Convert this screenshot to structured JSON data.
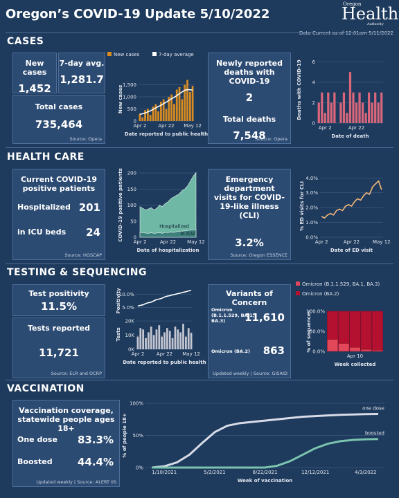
{
  "header": {
    "title": "Oregon’s COVID-19 Update 5/10/2022",
    "logo_top": "Oregon",
    "logo_main": "Health",
    "logo_bottom": "Authority",
    "data_current": "Data Current as of 12:01am 5/11/2022"
  },
  "cases": {
    "title": "CASES",
    "new_cases_label": "New cases",
    "new_cases": "1,452",
    "avg_label": "7-day avg.",
    "avg": "1,281.7",
    "total_label": "Total cases",
    "total": "735,464",
    "source": "Source: Opera",
    "deaths_label": "Newly reported deaths with COVID-19",
    "deaths": "2",
    "total_deaths_label": "Total deaths",
    "total_deaths": "7,548",
    "deaths_source": "Source: Opera"
  },
  "health_care": {
    "title": "HEALTH CARE",
    "patients_label": "Current COVID-19 positive patients",
    "hospitalized_label": "Hospitalized",
    "hospitalized": "201",
    "icu_label": "in ICU beds",
    "icu": "24",
    "source": "Source: HOSCAP",
    "ed_label": "Emergency department visits for COVID-19-like illness (CLI)",
    "ed": "3.2%",
    "ed_source": "Source: Oregon ESSENCE"
  },
  "testing": {
    "title": "TESTING & SEQUENCING",
    "positivity_label": "Test positivity",
    "positivity": "11.5%",
    "tests_label": "Tests reported",
    "tests": "11,721",
    "source": "Source: ELR and OCRP",
    "variants_label": "Variants of Concern",
    "ba1": "11,610",
    "ba2": "863",
    "variants_source": "Updated weekly | Source: GISAID"
  },
  "vaccination": {
    "title": "VACCINATION",
    "coverage_label": "Vaccination coverage, statewide people ages 18+",
    "one_dose_label": "One dose",
    "one_dose": "83.3%",
    "boosted_label": "Boosted",
    "boosted": "44.4%",
    "source": "Updated weekly | Source: ALERT IIS"
  },
  "chart_data": [
    {
      "type": "bar",
      "ylabel": "New cases",
      "xlabel": "Date reported to public health",
      "legend": "top",
      "categories": [
        "Apr 2",
        null,
        null,
        null,
        null,
        null,
        null,
        null,
        null,
        null,
        "Apr 22",
        null,
        null,
        null,
        null,
        null,
        null,
        null,
        null,
        null,
        "May 12"
      ],
      "series": [
        {
          "name": "New cases",
          "mark": "bar",
          "color": "#d98c1f",
          "values": [
            300,
            150,
            450,
            500,
            250,
            600,
            700,
            400,
            800,
            900,
            500,
            1000,
            1100,
            700,
            1300,
            1400,
            900,
            1500,
            1700,
            1200,
            1452
          ]
        },
        {
          "name": "7-day average",
          "mark": "line",
          "color": "#ffffff",
          "values": [
            280,
            300,
            330,
            380,
            420,
            480,
            540,
            600,
            650,
            720,
            780,
            850,
            920,
            980,
            1050,
            1130,
            1200,
            1270,
            1300,
            1290,
            1281.7
          ]
        }
      ],
      "ylim": [
        0,
        1800
      ],
      "yticks": [
        0,
        500,
        {
          "value": 1000,
          "label": "1,000"
        },
        {
          "value": 1500,
          "label": "1,500"
        }
      ]
    },
    {
      "type": "bar",
      "ylabel": "Deaths with COVID-19",
      "xlabel": "Date of death",
      "categories": [
        null,
        null,
        "Apr 2",
        null,
        null,
        null,
        null,
        null,
        null,
        null,
        null,
        null,
        "Apr 22",
        null,
        null,
        null,
        null,
        null,
        null,
        null,
        null
      ],
      "series": [
        {
          "name": "Deaths",
          "color": "#d9677c",
          "values": [
            2,
            3,
            1,
            3,
            2,
            3,
            0,
            2,
            3,
            1,
            5,
            3,
            2,
            3,
            2,
            1,
            3,
            2,
            3,
            2,
            3
          ]
        }
      ],
      "ylim": [
        0,
        6.5
      ],
      "yticks": [
        0,
        2,
        4,
        6
      ]
    },
    {
      "type": "area",
      "ylabel": "COVID-19 positive patients",
      "xlabel": "Date of hospitalization",
      "legend": "inline",
      "categories": [
        "Apr 2",
        null,
        null,
        null,
        null,
        null,
        null,
        null,
        null,
        null,
        "Apr 22",
        null,
        null,
        null,
        null,
        null,
        null,
        null,
        null,
        null,
        "May 12"
      ],
      "series": [
        {
          "name": "Hospitalized",
          "color": "#6fb8a6",
          "values": [
            95,
            90,
            85,
            88,
            92,
            85,
            90,
            100,
            95,
            105,
            110,
            120,
            125,
            130,
            135,
            145,
            150,
            160,
            175,
            190,
            201
          ]
        },
        {
          "name": "in ICU",
          "color": "#3d7f7a",
          "values": [
            15,
            14,
            13,
            12,
            14,
            12,
            13,
            14,
            12,
            15,
            14,
            16,
            15,
            17,
            18,
            19,
            20,
            21,
            22,
            23,
            24
          ]
        }
      ],
      "ylim": [
        0,
        200
      ],
      "yticks": [
        0,
        50,
        100,
        150,
        200
      ]
    },
    {
      "type": "line",
      "ylabel": "% ED visits for CLI",
      "xlabel": "Date of ED visit",
      "categories": [
        "Apr 2",
        null,
        null,
        null,
        null,
        null,
        null,
        null,
        null,
        null,
        "Apr 22",
        null,
        null,
        null,
        null,
        null,
        null,
        null,
        null,
        null,
        "May 12"
      ],
      "series": [
        {
          "name": "CLI",
          "color": "#f5b97a",
          "values": [
            1.4,
            1.3,
            1.5,
            1.6,
            1.5,
            1.8,
            1.9,
            1.8,
            2.1,
            2.2,
            2.1,
            2.4,
            2.6,
            2.5,
            2.8,
            3.0,
            2.9,
            3.4,
            3.6,
            3.8,
            3.2
          ]
        }
      ],
      "ylim": [
        0,
        4.2
      ],
      "yticks": [
        {
          "value": 0,
          "label": "0.0%"
        },
        {
          "value": 1,
          "label": "1.0%"
        },
        {
          "value": 2,
          "label": "2.0%"
        },
        {
          "value": 3,
          "label": "3.0%"
        },
        {
          "value": 4,
          "label": "4.0%"
        }
      ]
    },
    {
      "type": "line",
      "ylabel": "Positivity",
      "categories": [
        null,
        null,
        null,
        null,
        null,
        null,
        null,
        null,
        null,
        null,
        null,
        null,
        null,
        null,
        null,
        null,
        null,
        null,
        null,
        null,
        null
      ],
      "series": [
        {
          "name": "Positivity",
          "color": "#ffffff",
          "values": [
            5.5,
            5.8,
            6.0,
            6.5,
            6.8,
            7.0,
            7.5,
            8.0,
            8.2,
            8.5,
            9.0,
            9.3,
            9.5,
            9.8,
            10.0,
            10.3,
            10.5,
            10.8,
            11.0,
            11.3,
            11.5
          ]
        }
      ],
      "ylim": [
        3,
        12
      ],
      "yticks": [
        {
          "value": 5,
          "label": "5.0%"
        },
        {
          "value": 10,
          "label": "10.0%"
        }
      ]
    },
    {
      "type": "bar",
      "ylabel": "Tests",
      "xlabel": "Date reported to public health",
      "categories": [
        "Apr 2",
        null,
        null,
        null,
        null,
        null,
        null,
        null,
        null,
        null,
        "Apr 22",
        null,
        null,
        null,
        null,
        null,
        null,
        null,
        null,
        null,
        "May 12"
      ],
      "series": [
        {
          "name": "Tests",
          "color": "#c3c6d0",
          "values": [
            9000,
            15000,
            14000,
            8000,
            12000,
            16000,
            10000,
            14000,
            17000,
            9000,
            12000,
            15000,
            13000,
            8000,
            16000,
            14000,
            12000,
            18000,
            9000,
            15000,
            11721
          ]
        }
      ],
      "ylim": [
        0,
        21000
      ],
      "yticks": [
        {
          "value": 0,
          "label": "0K"
        },
        {
          "value": 10000,
          "label": "10K"
        },
        {
          "value": 20000,
          "label": "20K"
        }
      ]
    },
    {
      "type": "stacked_bar",
      "ylabel": "% of sequences",
      "xlabel": "Week collected",
      "legend": "top",
      "categories": [
        null,
        null,
        "Apr 10",
        null,
        null
      ],
      "series": [
        {
          "name": "Omicron (B.1.1.529, BA.1, BA.3)",
          "color": "#e2475a",
          "values": [
            30,
            20,
            10,
            5,
            3
          ]
        },
        {
          "name": "Omicron (BA.2)",
          "color": "#b3112f",
          "values": [
            70,
            80,
            90,
            95,
            97
          ]
        }
      ],
      "ylim": [
        0,
        100
      ],
      "yticks": [
        {
          "value": 0,
          "label": "0.0%"
        },
        {
          "value": 50,
          "label": "50.0%"
        },
        {
          "value": 100,
          "label": "100.0%"
        }
      ]
    },
    {
      "type": "line",
      "ylabel": "% of people 18+",
      "xlabel": "Week of vaccination",
      "legend": "inline",
      "categories": [
        null,
        "1/10/2021",
        null,
        null,
        null,
        "5/2/2021",
        null,
        null,
        null,
        "8/22/2021",
        null,
        null,
        null,
        "12/12/2021",
        null,
        null,
        null,
        "4/3/2022",
        null
      ],
      "series": [
        {
          "name": "one dose",
          "color": "#d8dce8",
          "values": [
            0,
            2,
            8,
            20,
            38,
            55,
            65,
            69,
            71,
            73,
            75,
            77,
            79,
            80,
            81,
            82,
            82.5,
            83,
            83.3
          ]
        },
        {
          "name": "boosted",
          "color": "#7cc4b0",
          "values": [
            0,
            0,
            0,
            0,
            0,
            0,
            0,
            0,
            0,
            0,
            3,
            10,
            20,
            30,
            37,
            41,
            43,
            44,
            44.4
          ]
        }
      ],
      "ylim": [
        0,
        100
      ],
      "yticks": [
        {
          "value": 0,
          "label": "0%"
        },
        {
          "value": 50,
          "label": "50%"
        },
        {
          "value": 100,
          "label": "100%"
        }
      ]
    }
  ]
}
